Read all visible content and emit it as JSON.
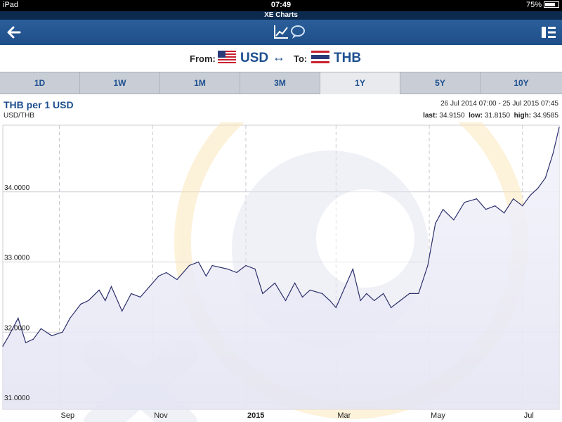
{
  "status_bar": {
    "device": "iPad",
    "time": "07:49",
    "battery": "75%"
  },
  "app": {
    "title": "XE Charts"
  },
  "navbar": {
    "back_icon": "back-arrow-icon",
    "center_icon": "chart-comment-icon",
    "menu_icon": "list-menu-icon"
  },
  "currency": {
    "from_label": "From:",
    "from_code": "USD",
    "swap_symbol": "↔",
    "to_label": "To:",
    "to_code": "THB"
  },
  "tabs": [
    {
      "label": "1D",
      "active": false
    },
    {
      "label": "1W",
      "active": false
    },
    {
      "label": "1M",
      "active": false
    },
    {
      "label": "3M",
      "active": false
    },
    {
      "label": "1Y",
      "active": true
    },
    {
      "label": "5Y",
      "active": false
    },
    {
      "label": "10Y",
      "active": false
    }
  ],
  "chart_header": {
    "title": "THB per 1 USD",
    "pair": "USD/THB",
    "range": "26 Jul 2014 07:00 - 25 Jul 2015 07:45",
    "last_label": "last:",
    "last": "34.9150",
    "low_label": "low:",
    "low": "31.8150",
    "high_label": "high:",
    "high": "34.9585"
  },
  "colors": {
    "line": "#2b2f6b",
    "fill": "#e9eaf6",
    "nav": "#2b5f9b",
    "accent": "#1d4f8f"
  },
  "chart_data": {
    "type": "line",
    "title": "THB per 1 USD",
    "xlabel": "",
    "ylabel": "",
    "ylim": [
      30.9,
      34.95
    ],
    "yticks": [
      {
        "value": 34.0,
        "label": "34.0000"
      },
      {
        "value": 33.0,
        "label": "33.0000"
      },
      {
        "value": 32.0,
        "label": "32.0000"
      },
      {
        "value": 31.0,
        "label": "31.0000"
      }
    ],
    "xlim": [
      "2014-07-26",
      "2015-07-25"
    ],
    "xticks": [
      {
        "date": "2014-09-01",
        "label": "Sep",
        "bold": false
      },
      {
        "date": "2014-11-01",
        "label": "Nov",
        "bold": false
      },
      {
        "date": "2015-01-01",
        "label": "2015",
        "bold": true
      },
      {
        "date": "2015-03-01",
        "label": "Mar",
        "bold": false
      },
      {
        "date": "2015-05-01",
        "label": "May",
        "bold": false
      },
      {
        "date": "2015-07-01",
        "label": "Jul",
        "bold": false
      }
    ],
    "grid": true,
    "series": [
      {
        "x": [
          "2014-07-26",
          "2014-07-30",
          "2014-08-05",
          "2014-08-10",
          "2014-08-15",
          "2014-08-20",
          "2014-08-27",
          "2014-09-03",
          "2014-09-08",
          "2014-09-15",
          "2014-09-20",
          "2014-09-27",
          "2014-10-01",
          "2014-10-05",
          "2014-10-12",
          "2014-10-18",
          "2014-10-24",
          "2014-10-30",
          "2014-11-05",
          "2014-11-10",
          "2014-11-17",
          "2014-11-25",
          "2014-12-01",
          "2014-12-06",
          "2014-12-10",
          "2014-12-20",
          "2014-12-26",
          "2015-01-01",
          "2015-01-07",
          "2015-01-12",
          "2015-01-20",
          "2015-01-27",
          "2015-02-02",
          "2015-02-07",
          "2015-02-12",
          "2015-02-20",
          "2015-02-25",
          "2015-03-01",
          "2015-03-05",
          "2015-03-12",
          "2015-03-17",
          "2015-03-21",
          "2015-03-26",
          "2015-04-01",
          "2015-04-06",
          "2015-04-12",
          "2015-04-18",
          "2015-04-24",
          "2015-04-30",
          "2015-05-05",
          "2015-05-10",
          "2015-05-17",
          "2015-05-24",
          "2015-06-01",
          "2015-06-07",
          "2015-06-13",
          "2015-06-19",
          "2015-06-25",
          "2015-07-01",
          "2015-07-06",
          "2015-07-11",
          "2015-07-16",
          "2015-07-21",
          "2015-07-25"
        ],
        "y": [
          31.8,
          31.95,
          32.2,
          31.85,
          31.9,
          32.05,
          31.95,
          32.0,
          32.2,
          32.4,
          32.45,
          32.6,
          32.45,
          32.65,
          32.3,
          32.55,
          32.5,
          32.65,
          32.8,
          32.85,
          32.75,
          32.95,
          33.0,
          32.8,
          32.95,
          32.9,
          32.85,
          32.95,
          32.9,
          32.55,
          32.7,
          32.45,
          32.7,
          32.5,
          32.6,
          32.55,
          32.45,
          32.35,
          32.55,
          32.9,
          32.45,
          32.55,
          32.45,
          32.55,
          32.35,
          32.45,
          32.55,
          32.55,
          32.95,
          33.55,
          33.75,
          33.6,
          33.85,
          33.9,
          33.75,
          33.8,
          33.7,
          33.9,
          33.8,
          33.95,
          34.05,
          34.2,
          34.55,
          34.92
        ]
      }
    ]
  }
}
